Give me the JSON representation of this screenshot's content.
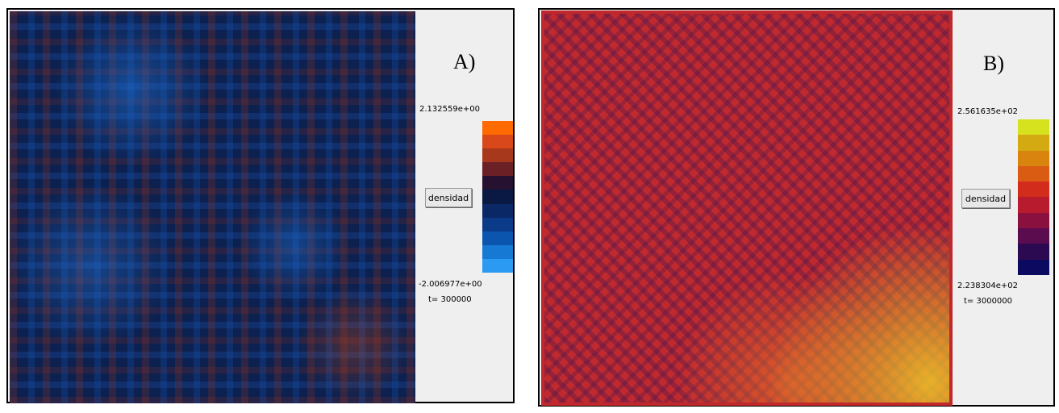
{
  "panels": [
    {
      "label": "A)",
      "scale_max": "2.132559e+00",
      "scale_min": "-2.006977e+00",
      "button": "densidad",
      "time": "t= 300000",
      "colorbar": [
        "#ff6a00",
        "#d8481a",
        "#a8381c",
        "#6a2024",
        "#261230",
        "#0a1844",
        "#0a2766",
        "#0b3a88",
        "#0c55ae",
        "#167ad4",
        "#2a9af2"
      ]
    },
    {
      "label": "B)",
      "scale_max": "2.561635e+02",
      "scale_min": "2.238304e+02",
      "button": "densidad",
      "time": "t= 3000000",
      "colorbar": [
        "#d6e21e",
        "#d3aa12",
        "#d8840e",
        "#da5c12",
        "#d22c1c",
        "#b81a2e",
        "#8a1040",
        "#5a0c4e",
        "#2c0a52",
        "#0c0a60"
      ]
    }
  ]
}
